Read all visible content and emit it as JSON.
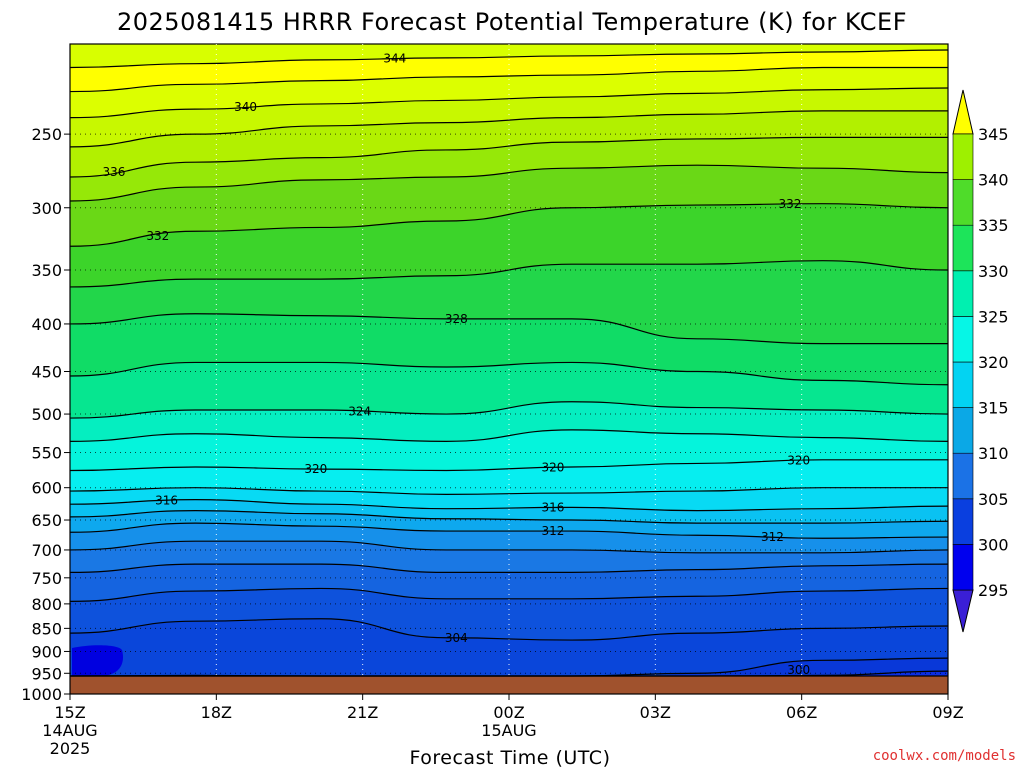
{
  "chart_data": {
    "type": "heatmap",
    "title": "2025081415 HRRR Forecast Potential Temperature (K) for KCEF",
    "xlabel": "Forecast Time (UTC)",
    "credit": "coolwx.com/models",
    "x_ticks": [
      {
        "label": "15Z",
        "sub1": "14AUG",
        "sub2": "2025"
      },
      {
        "label": "18Z",
        "sub1": "",
        "sub2": ""
      },
      {
        "label": "21Z",
        "sub1": "",
        "sub2": ""
      },
      {
        "label": "00Z",
        "sub1": "15AUG",
        "sub2": ""
      },
      {
        "label": "03Z",
        "sub1": "",
        "sub2": ""
      },
      {
        "label": "06Z",
        "sub1": "",
        "sub2": ""
      },
      {
        "label": "09Z",
        "sub1": "",
        "sub2": ""
      }
    ],
    "x_range_hours": [
      0,
      18
    ],
    "y_axis": {
      "type": "log-pressure",
      "range_hPa": [
        1000,
        200
      ],
      "ticks": [
        250,
        300,
        350,
        400,
        450,
        500,
        550,
        600,
        650,
        700,
        750,
        800,
        850,
        900,
        950,
        1000
      ]
    },
    "colorbar": {
      "levels": [
        295,
        300,
        305,
        310,
        315,
        320,
        325,
        330,
        335,
        340,
        345
      ],
      "colors": [
        "#3a1fd6",
        "#0000ee",
        "#0a3fdf",
        "#1b72e6",
        "#0ba8e6",
        "#03d3f2",
        "#06f6e6",
        "#00f0b0",
        "#1de45a",
        "#4fdc2a",
        "#9ef000",
        "#c8ff00",
        "#ffff00"
      ]
    },
    "isentropes": [
      {
        "value": 298,
        "pressure": [
          1000,
          1000,
          1000,
          1000,
          1000,
          1000,
          980,
          960
        ],
        "label": ""
      },
      {
        "value": 300,
        "pressure": [
          1000,
          1000,
          1000,
          1000,
          1000,
          990,
          955,
          945
        ],
        "label": "300"
      },
      {
        "value": 302,
        "pressure": [
          960,
          955,
          1000,
          1000,
          1000,
          950,
          920,
          915
        ],
        "label": ""
      },
      {
        "value": 304,
        "pressure": [
          860,
          835,
          830,
          870,
          875,
          860,
          850,
          845
        ],
        "label": "304"
      },
      {
        "value": 306,
        "pressure": [
          795,
          775,
          770,
          790,
          790,
          785,
          775,
          770
        ],
        "label": ""
      },
      {
        "value": 308,
        "pressure": [
          740,
          725,
          725,
          740,
          740,
          735,
          728,
          725
        ],
        "label": ""
      },
      {
        "value": 310,
        "pressure": [
          700,
          685,
          685,
          700,
          700,
          705,
          705,
          700
        ],
        "label": ""
      },
      {
        "value": 312,
        "pressure": [
          670,
          655,
          660,
          668,
          668,
          675,
          680,
          678
        ],
        "label": "312"
      },
      {
        "value": 314,
        "pressure": [
          645,
          635,
          640,
          648,
          650,
          655,
          655,
          652
        ],
        "label": ""
      },
      {
        "value": 316,
        "pressure": [
          625,
          618,
          625,
          632,
          630,
          635,
          632,
          628
        ],
        "label": "316"
      },
      {
        "value": 318,
        "pressure": [
          605,
          600,
          605,
          610,
          608,
          605,
          600,
          600
        ],
        "label": ""
      },
      {
        "value": 320,
        "pressure": [
          575,
          570,
          573,
          575,
          570,
          565,
          560,
          560
        ],
        "label": "320"
      },
      {
        "value": 322,
        "pressure": [
          535,
          525,
          530,
          535,
          520,
          525,
          530,
          535
        ],
        "label": ""
      },
      {
        "value": 324,
        "pressure": [
          505,
          495,
          495,
          500,
          485,
          492,
          495,
          500
        ],
        "label": "324"
      },
      {
        "value": 326,
        "pressure": [
          455,
          440,
          440,
          445,
          440,
          450,
          460,
          465
        ],
        "label": ""
      },
      {
        "value": 328,
        "pressure": [
          400,
          390,
          392,
          395,
          395,
          415,
          420,
          420
        ],
        "label": "328"
      },
      {
        "value": 330,
        "pressure": [
          365,
          358,
          358,
          355,
          345,
          345,
          342,
          350
        ],
        "label": ""
      },
      {
        "value": 332,
        "pressure": [
          330,
          318,
          315,
          310,
          300,
          298,
          297,
          300
        ],
        "label": "332"
      },
      {
        "value": 334,
        "pressure": [
          295,
          285,
          280,
          278,
          272,
          270,
          272,
          275
        ],
        "label": ""
      },
      {
        "value": 336,
        "pressure": [
          278,
          268,
          265,
          260,
          255,
          253,
          252,
          252
        ],
        "label": "336"
      },
      {
        "value": 338,
        "pressure": [
          258,
          250,
          245,
          243,
          240,
          238,
          236,
          236
        ],
        "label": ""
      },
      {
        "value": 340,
        "pressure": [
          240,
          235,
          232,
          230,
          228,
          226,
          224,
          223
        ],
        "label": "340"
      },
      {
        "value": 342,
        "pressure": [
          225,
          221,
          219,
          217,
          216,
          214,
          212,
          212
        ],
        "label": ""
      },
      {
        "value": 344,
        "pressure": [
          212,
          210,
          208,
          207,
          206,
          205,
          204,
          203
        ],
        "label": "344"
      }
    ],
    "grid": true
  }
}
